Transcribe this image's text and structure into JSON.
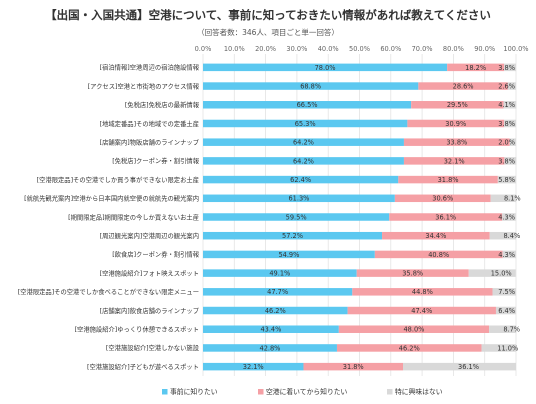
{
  "chart_data": {
    "type": "bar",
    "orientation": "horizontal",
    "stacked": true,
    "title": "【出国・入国共通】空港について、事前に知っておきたい情報があれば教えてください",
    "subtitle": "（回答者数：346人、項目ごと単一回答）",
    "xlim": [
      0,
      100
    ],
    "ticks": [
      "0.0%",
      "10.0%",
      "20.0%",
      "30.0%",
      "40.0%",
      "50.0%",
      "60.0%",
      "70.0%",
      "80.0%",
      "90.0%",
      "100.0%"
    ],
    "legend_position": "bottom",
    "colors": [
      "#5bc8f0",
      "#f5a0a5",
      "#d9d9d9"
    ],
    "categories": [
      "[宿泊情報]空港周辺の宿泊施設情報",
      "[アクセス]空港と市街地のアクセス情報",
      "[免税店]免税店の最新情報",
      "[地域定番品]その地域での定番土産",
      "[店舗案内]物販店舗のラインナップ",
      "[免税店]クーポン券・割引情報",
      "[空港限定品]その空港でしか買う事ができない限定お土産",
      "[就航先観光案内]空港から日本国内就空便の就航先の観光案内",
      "[期間限定品]期間限定の今しか買えないお土産",
      "[周辺観光案内]空港周辺の観光案内",
      "[飲食店]クーポン券・割引情報",
      "[空港施設紹介]フォト映えスポット",
      "[空港限定品]その空港でしか食べることができない限定メニュー",
      "[店舗案内]飲食店舗のラインナップ",
      "[空港施設紹介]ゆっくり休憩できるスポット",
      "[空港施設紹介]空港しかない施設",
      "[空港施設紹介]子どもが遊べるスポット"
    ],
    "series": [
      {
        "name": "事前に知りたい",
        "values": [
          78.0,
          68.8,
          66.5,
          65.3,
          64.2,
          64.2,
          62.4,
          61.3,
          59.5,
          57.2,
          54.9,
          49.1,
          47.7,
          46.2,
          43.4,
          42.8,
          32.1
        ]
      },
      {
        "name": "空港に着いてから知りたい",
        "values": [
          18.2,
          28.6,
          29.5,
          30.9,
          33.8,
          32.1,
          31.8,
          30.6,
          36.1,
          34.4,
          40.8,
          35.8,
          44.8,
          47.4,
          48.0,
          46.2,
          31.8
        ]
      },
      {
        "name": "特に興味はない",
        "values": [
          3.8,
          2.6,
          4.1,
          3.8,
          2.0,
          3.8,
          5.8,
          8.1,
          4.3,
          8.4,
          4.3,
          15.0,
          7.5,
          6.4,
          8.7,
          11.0,
          36.1
        ]
      }
    ]
  }
}
